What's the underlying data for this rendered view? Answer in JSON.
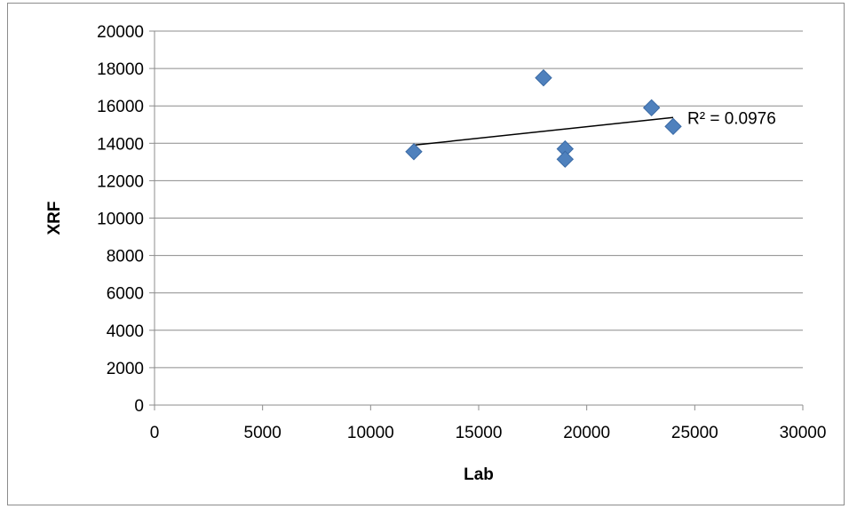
{
  "chart_data": {
    "type": "scatter",
    "title": "",
    "xlabel": "Lab",
    "ylabel": "XRF",
    "xlim": [
      0,
      30000
    ],
    "ylim": [
      0,
      20000
    ],
    "x_ticks": [
      0,
      5000,
      10000,
      15000,
      20000,
      25000,
      30000
    ],
    "y_ticks": [
      0,
      2000,
      4000,
      6000,
      8000,
      10000,
      12000,
      14000,
      16000,
      18000,
      20000
    ],
    "grid": "horizontal",
    "legend": "none",
    "marker": "diamond",
    "colors": {
      "marker": "#4F81BD",
      "marker_edge": "#3A6AA5",
      "trendline": "#000000",
      "grid": "#8c8c8c"
    },
    "series": [
      {
        "points": [
          {
            "x": 12000,
            "y": 13550
          },
          {
            "x": 18000,
            "y": 17500
          },
          {
            "x": 19000,
            "y": 13700
          },
          {
            "x": 19000,
            "y": 13150
          },
          {
            "x": 23000,
            "y": 15900
          },
          {
            "x": 24000,
            "y": 14900
          }
        ]
      }
    ],
    "trendline": {
      "type": "linear",
      "x_range": [
        12000,
        24000
      ],
      "y_start": 13900,
      "y_end": 15380,
      "label": "R² = 0.0976"
    }
  }
}
